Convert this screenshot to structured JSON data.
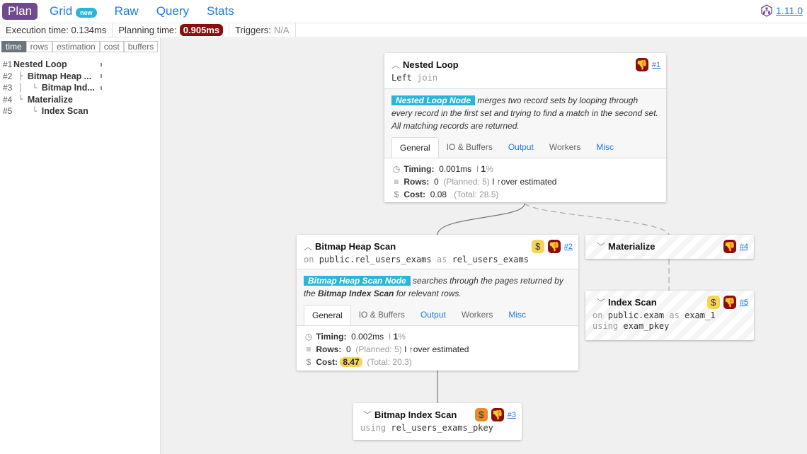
{
  "nav": {
    "tabs": [
      {
        "label": "Plan",
        "active": true
      },
      {
        "label": "Grid",
        "badge": "new"
      },
      {
        "label": "Raw"
      },
      {
        "label": "Query"
      },
      {
        "label": "Stats"
      }
    ],
    "version": "1.11.0"
  },
  "stats": {
    "execution_label": "Execution time:",
    "execution": "0.134ms",
    "planning_label": "Planning time:",
    "planning": "0.905ms",
    "triggers_label": "Triggers:",
    "triggers": "N/A"
  },
  "metric_tabs": [
    "time",
    "rows",
    "estimation",
    "cost",
    "buffers"
  ],
  "tree": [
    {
      "num": "#1",
      "prefix": "",
      "name": "Nested Loop"
    },
    {
      "num": "#2",
      "prefix": " ├ ",
      "name": "Bitmap Heap ..."
    },
    {
      "num": "#3",
      "prefix": " │  └ ",
      "name": "Bitmap Ind..."
    },
    {
      "num": "#4",
      "prefix": " └ ",
      "name": "Materialize"
    },
    {
      "num": "#5",
      "prefix": "    └ ",
      "name": "Index Scan"
    }
  ],
  "detail_tabs": [
    "General",
    "IO & Buffers",
    "Output",
    "Workers",
    "Misc"
  ],
  "labels": {
    "timing": "Timing:",
    "rows": "Rows:",
    "cost": "Cost:",
    "over": "over estimated"
  },
  "nodes": {
    "n1": {
      "title": "Nested Loop",
      "id": "#1",
      "sub1": "Left",
      "sub2": "join",
      "hl": "Nested Loop Node",
      "desc": " merges two record sets by looping through every record in the first set and trying to find a match in the second set. All matching records are returned.",
      "timing": "0.001ms",
      "pct": "1",
      "rows": "0",
      "planned": "(Planned: 5)",
      "cost": "0.08",
      "total": "(Total: 28.5)"
    },
    "n2": {
      "title": "Bitmap Heap Scan",
      "id": "#2",
      "on": "on",
      "rel": "public.rel_users_exams",
      "as": "as",
      "alias": "rel_users_exams",
      "hl": "Bitmap Heap Scan Node",
      "desc1": " searches through the pages returned by the ",
      "desc_b": "Bitmap Index Scan",
      "desc2": " for relevant rows.",
      "timing": "0.002ms",
      "pct": "1",
      "rows": "0",
      "planned": "(Planned: 5)",
      "cost": "8.47",
      "total": "(Total: 20.3)"
    },
    "n3": {
      "title": "Bitmap Index Scan",
      "id": "#3",
      "using": "using",
      "index": "rel_users_exams_pkey"
    },
    "n4": {
      "title": "Materialize",
      "id": "#4"
    },
    "n5": {
      "title": "Index Scan",
      "id": "#5",
      "on": "on",
      "rel": "public.exam",
      "as": "as",
      "alias": "exam_1",
      "using": "using",
      "index": "exam_pkey"
    }
  },
  "colors": {
    "accent": "#6f4a8e",
    "link": "#1e7ae0",
    "danger": "#8b0d0d",
    "cost_warning": "#f7d358",
    "cost_orange": "#e8892b",
    "node_type": "#29b6d8"
  }
}
